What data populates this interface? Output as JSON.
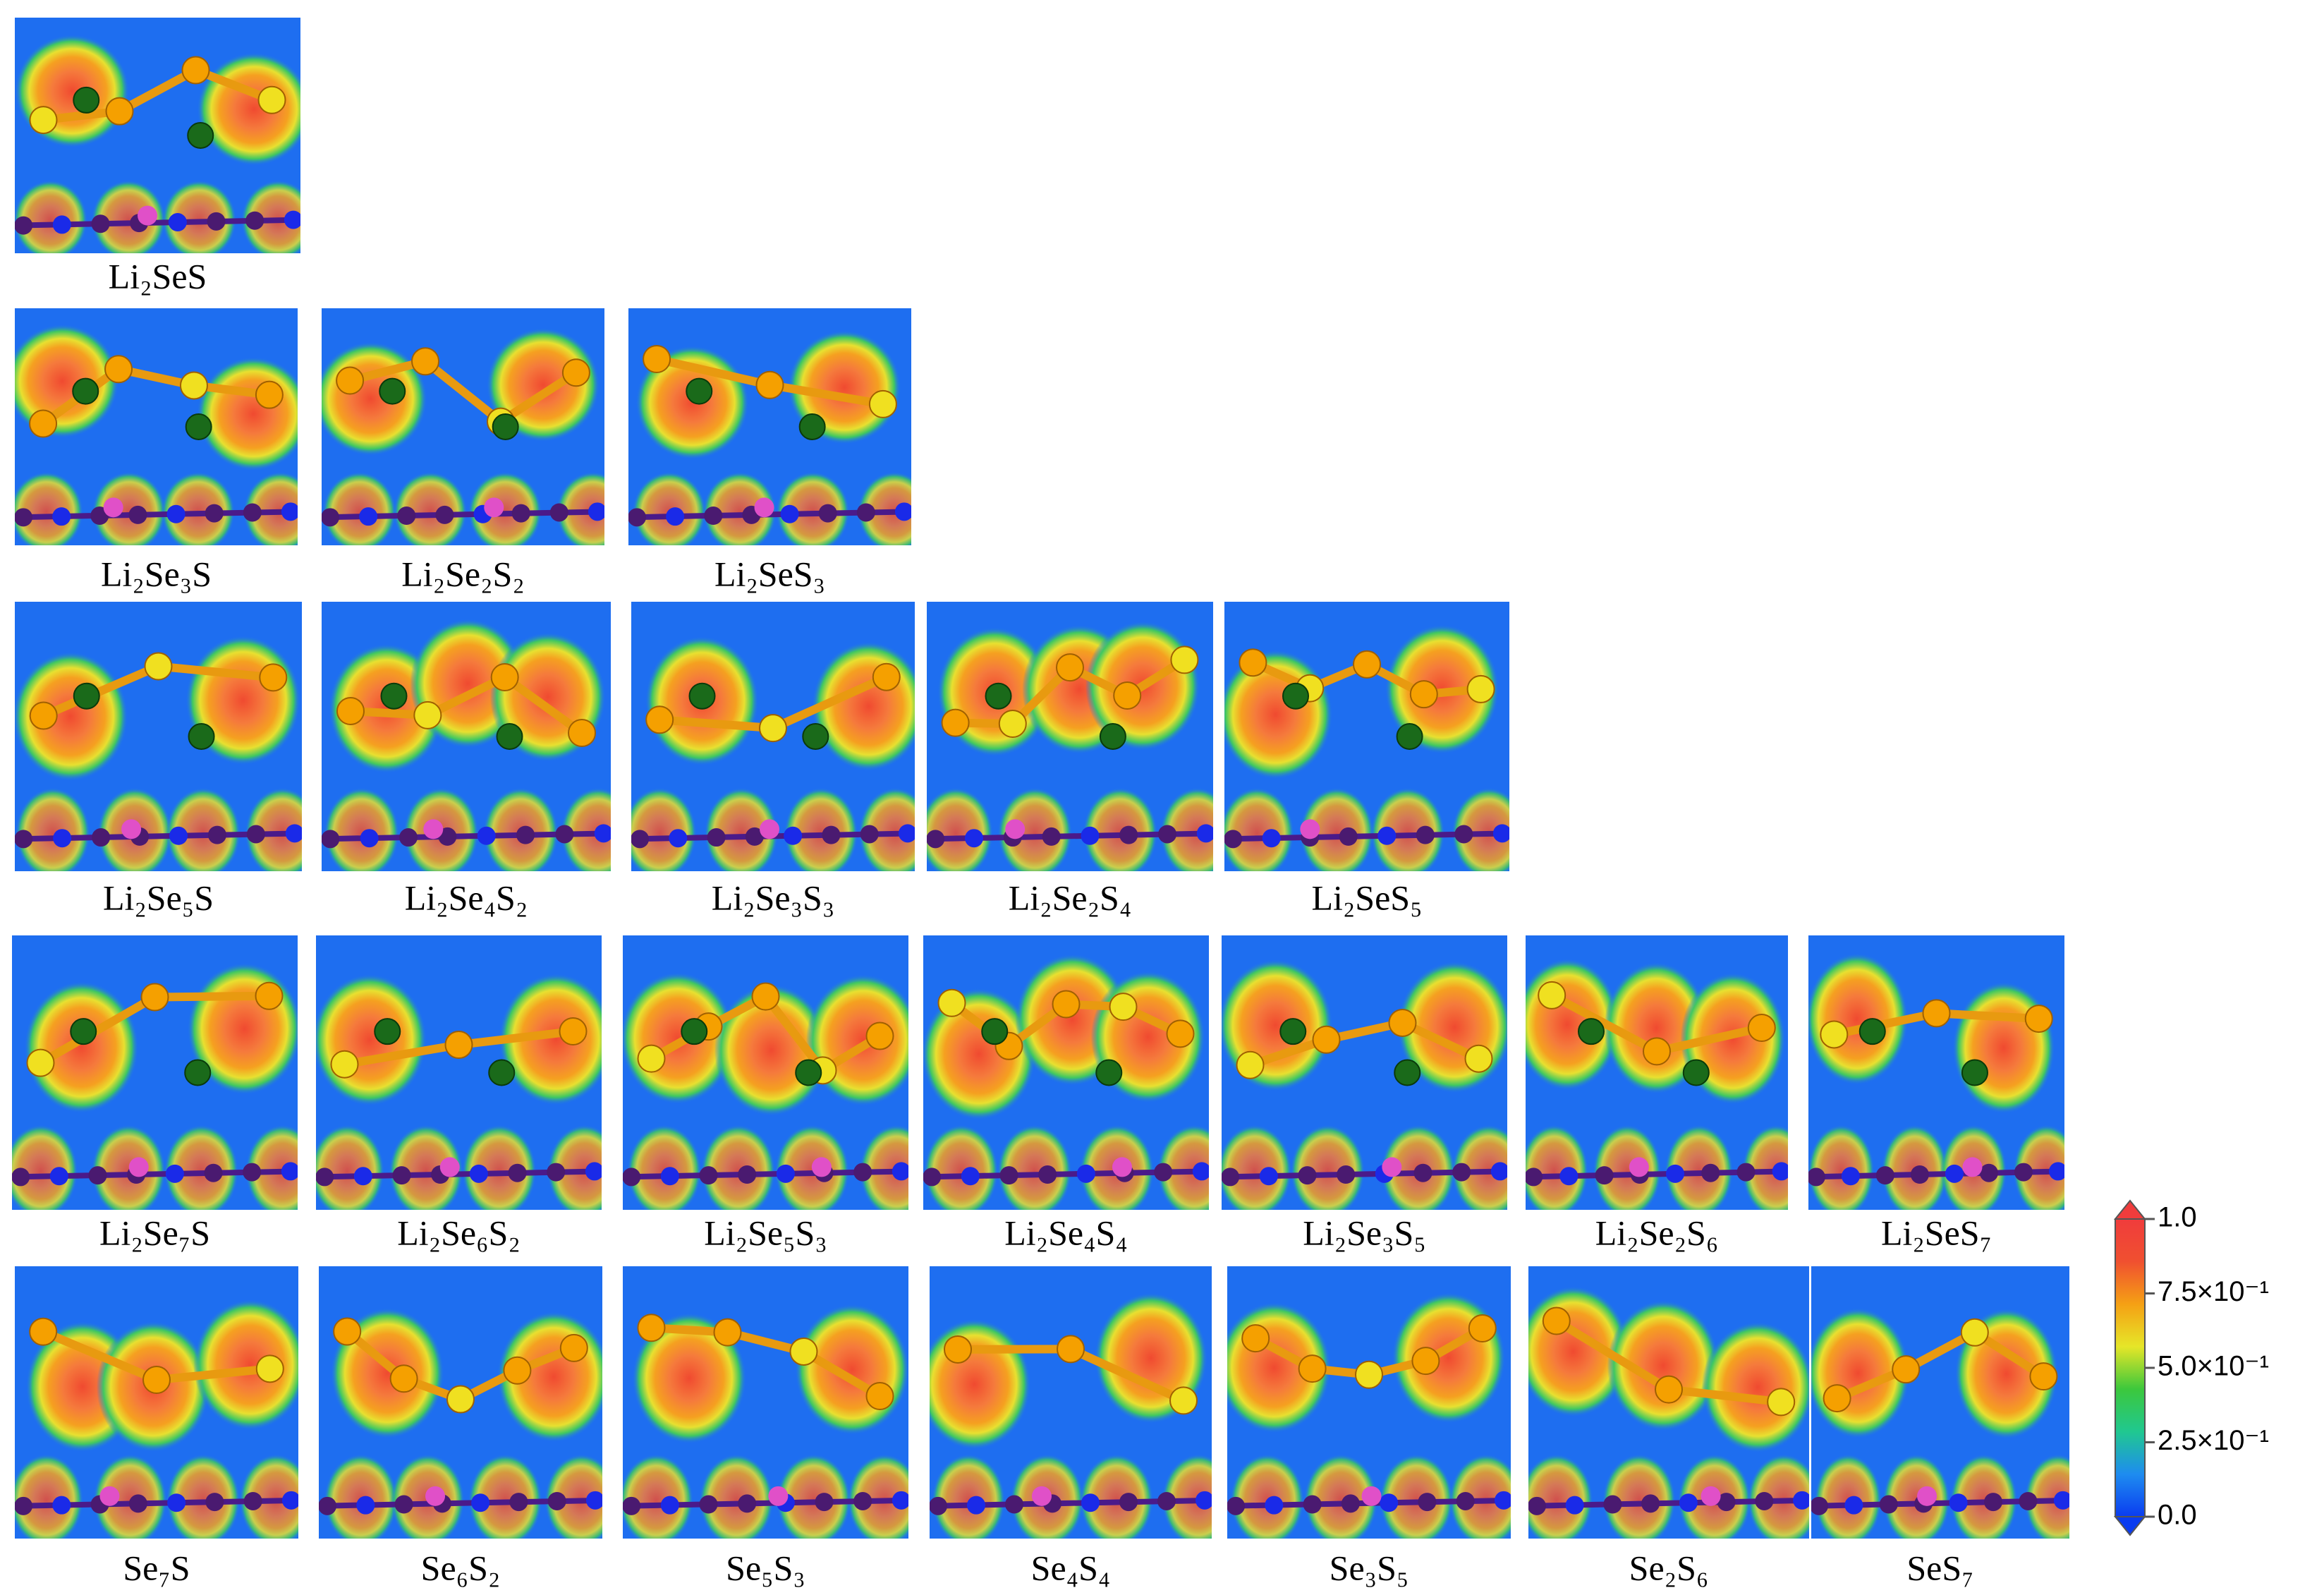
{
  "panels": {
    "rows": [
      [
        "Li₂SeS"
      ],
      [
        "Li₂Se₃S",
        "Li₂Se₂S₂",
        "Li₂SeS₃"
      ],
      [
        "Li₂Se₅S",
        "Li₂Se₄S₂",
        "Li₂Se₃S₃",
        "Li₂Se₂S₄",
        "Li₂SeS₅"
      ],
      [
        "Li₂Se₇S",
        "Li₂Se₆S₂",
        "Li₂Se₅S₃",
        "Li₂Se₄S₄",
        "Li₂Se₃S₅",
        "Li₂Se₂S₆",
        "Li₂SeS₇"
      ],
      [
        "Se₇S",
        "Se₆S₂",
        "Se₅S₃",
        "Se₄S₄",
        "Se₃S₅",
        "Se₂S₆",
        "SeS₇"
      ]
    ]
  },
  "colorbar": {
    "lim": [
      0,
      1
    ],
    "ticks": [
      {
        "value": 1,
        "label": "1.0"
      },
      {
        "value": 0.75,
        "label": "7.5×10⁻¹"
      },
      {
        "value": 0.5,
        "label": "5.0×10⁻¹"
      },
      {
        "value": 0.25,
        "label": "2.5×10⁻¹"
      },
      {
        "value": 0,
        "label": "0.0"
      }
    ],
    "colors": [
      "#0a3cf0",
      "#1e8cf0",
      "#20c890",
      "#3cc83c",
      "#e6e628",
      "#f5a014",
      "#f05030",
      "#f03c3c"
    ]
  }
}
